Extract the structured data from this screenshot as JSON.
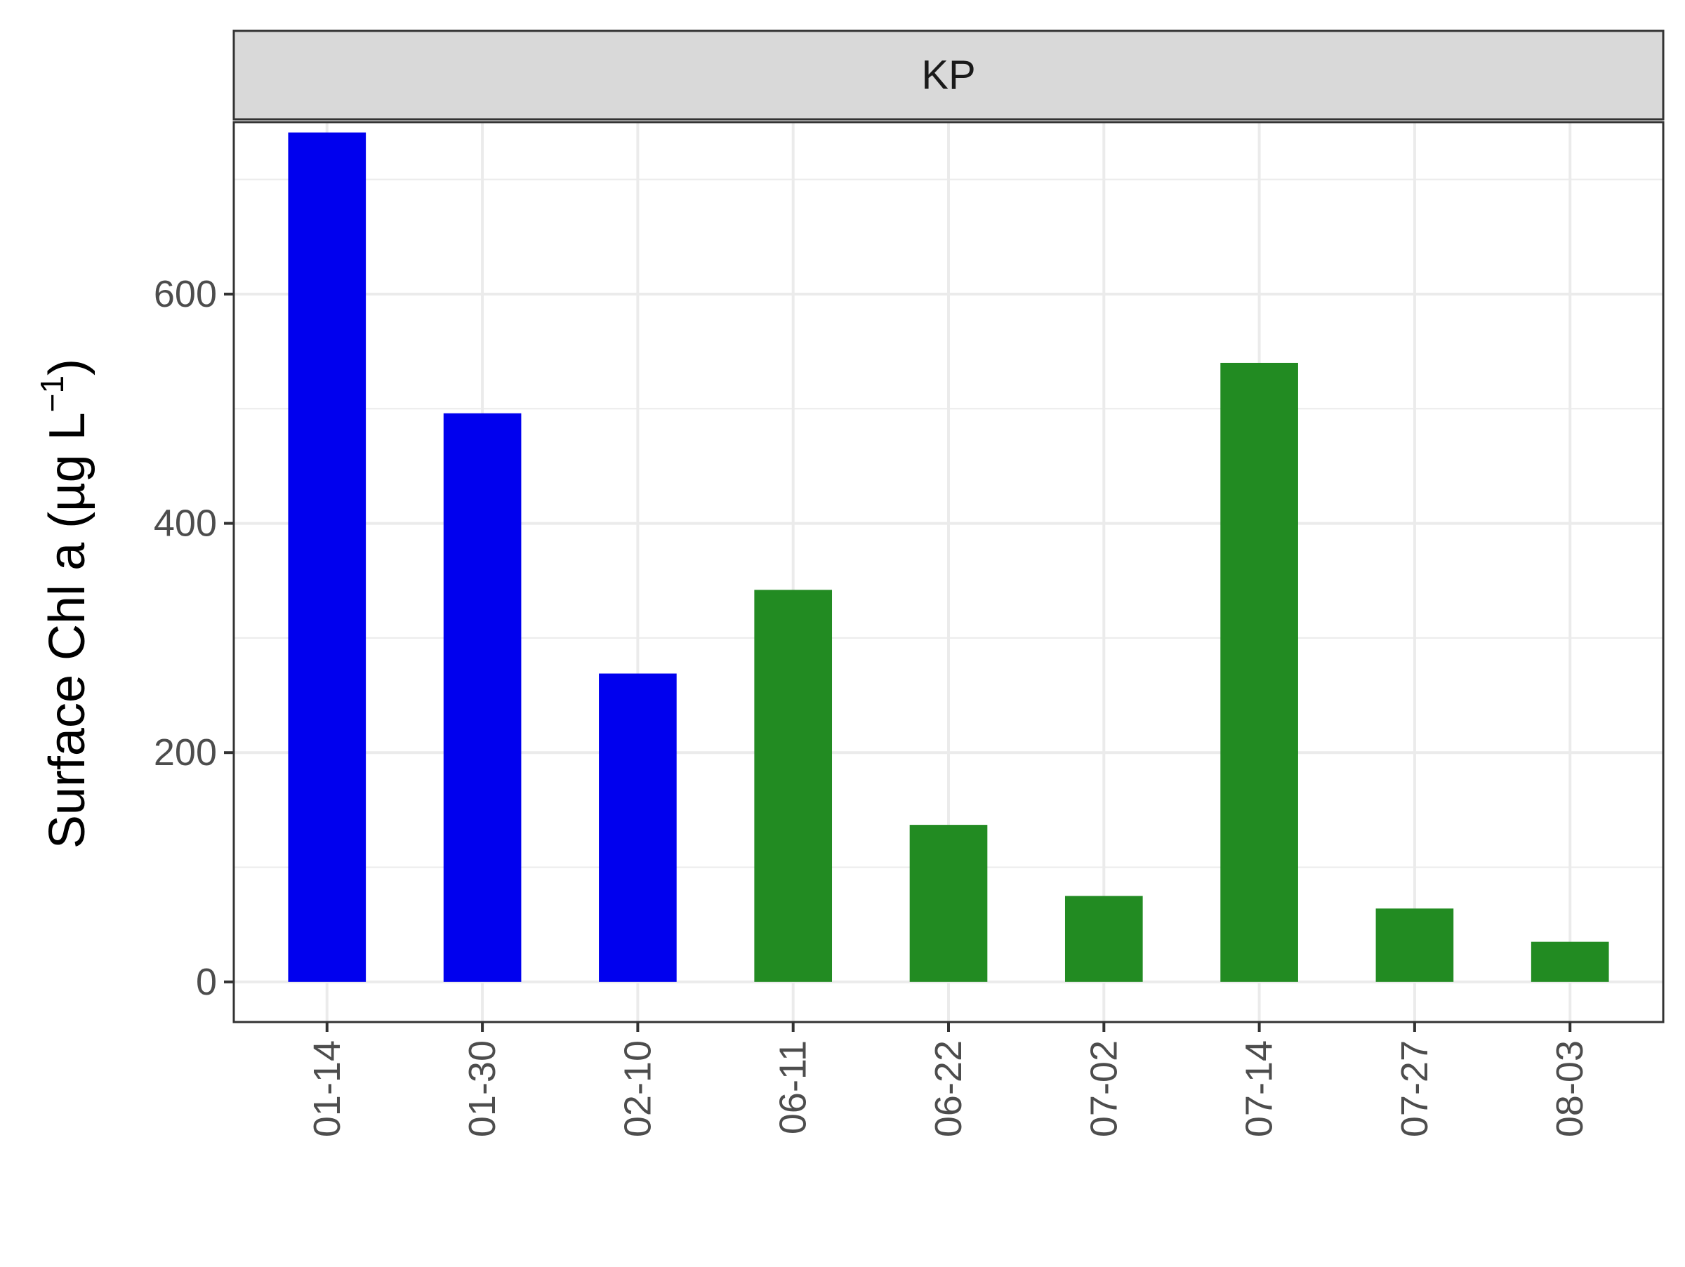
{
  "chart_data": {
    "type": "bar",
    "facet_label": "KP",
    "ylabel": "Surface Chl a (µg L",
    "ylabel_sup": "−1",
    "ylabel_close": ")",
    "xlabel": "",
    "ylim": [
      -35,
      750
    ],
    "yticks": [
      0,
      200,
      400,
      600
    ],
    "categories": [
      "01-14",
      "01-30",
      "02-10",
      "06-11",
      "06-22",
      "07-02",
      "07-14",
      "07-27",
      "08-03"
    ],
    "values": [
      741,
      496,
      269,
      342,
      137,
      75,
      540,
      64,
      35
    ],
    "bar_colors": [
      "#0000EE",
      "#0000EE",
      "#0000EE",
      "#228B22",
      "#228B22",
      "#228B22",
      "#228B22",
      "#228B22",
      "#228B22"
    ],
    "grid": true,
    "legend": "none"
  }
}
